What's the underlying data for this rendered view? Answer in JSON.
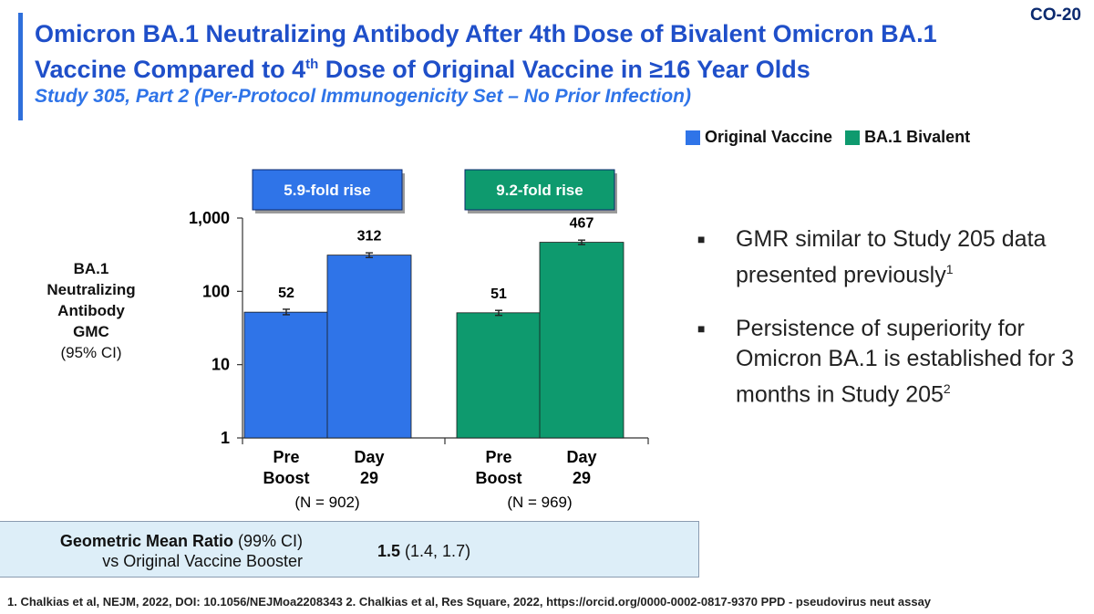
{
  "slide_code": "CO-20",
  "title": {
    "line1": "Omicron BA.1 Neutralizing Antibody After 4th Dose of Bivalent Omicron BA.1",
    "line2_a": "Vaccine Compared to 4",
    "line2_sup": "th",
    "line2_b": " Dose of Original Vaccine in ≥16 Year Olds"
  },
  "subtitle": "Study 305, Part 2 (Per-Protocol Immunogenicity Set – No Prior Infection)",
  "colors": {
    "original": "#2f74e8",
    "bivalent": "#0e9a6e",
    "title": "#1f4fc9"
  },
  "y_axis_label": {
    "line1": "BA.1",
    "line2": "Neutralizing",
    "line3": "Antibody",
    "line4": "GMC",
    "line5": "(95% CI)"
  },
  "chart_data": {
    "type": "bar",
    "scale": "log",
    "ylim": [
      1,
      1000
    ],
    "yticks": [
      1,
      10,
      100,
      1000
    ],
    "ytick_labels": [
      "1",
      "10",
      "100",
      "1,000"
    ],
    "legend": [
      {
        "name": "Original Vaccine",
        "color": "#2f74e8"
      },
      {
        "name": "BA.1 Bivalent",
        "color": "#0e9a6e"
      }
    ],
    "groups": [
      {
        "series": "Original Vaccine",
        "n_label": "(N = 902)",
        "fold_label": "5.9-fold rise",
        "bars": [
          {
            "cat1": "Pre",
            "cat2": "Boost",
            "value": 52,
            "label": "52",
            "ci_low": 48,
            "ci_high": 57
          },
          {
            "cat1": "Day",
            "cat2": "29",
            "value": 312,
            "label": "312",
            "ci_low": 290,
            "ci_high": 335
          }
        ]
      },
      {
        "series": "BA.1 Bivalent",
        "n_label": "(N = 969)",
        "fold_label": "9.2-fold rise",
        "bars": [
          {
            "cat1": "Pre",
            "cat2": "Boost",
            "value": 51,
            "label": "51",
            "ci_low": 47,
            "ci_high": 55
          },
          {
            "cat1": "Day",
            "cat2": "29",
            "value": 467,
            "label": "467",
            "ci_low": 435,
            "ci_high": 500
          }
        ]
      }
    ]
  },
  "bullets": [
    {
      "text": "GMR similar to Study 205 data presented previously",
      "sup": "1"
    },
    {
      "text": "Persistence of superiority for Omicron BA.1 is established for 3 months in Study 205",
      "sup": "2"
    }
  ],
  "gmr": {
    "label_bold": "Geometric Mean Ratio",
    "label_ci": " (99% CI)",
    "label_line2": "vs Original Vaccine Booster",
    "value_bold": "1.5",
    "value_ci": " (1.4, 1.7)"
  },
  "footnote": "1. Chalkias et al, NEJM, 2022, DOI: 10.1056/NEJMoa2208343  2. Chalkias et al, Res Square, 2022, https://orcid.org/0000-0002-0817-9370   PPD - pseudovirus neut assay"
}
